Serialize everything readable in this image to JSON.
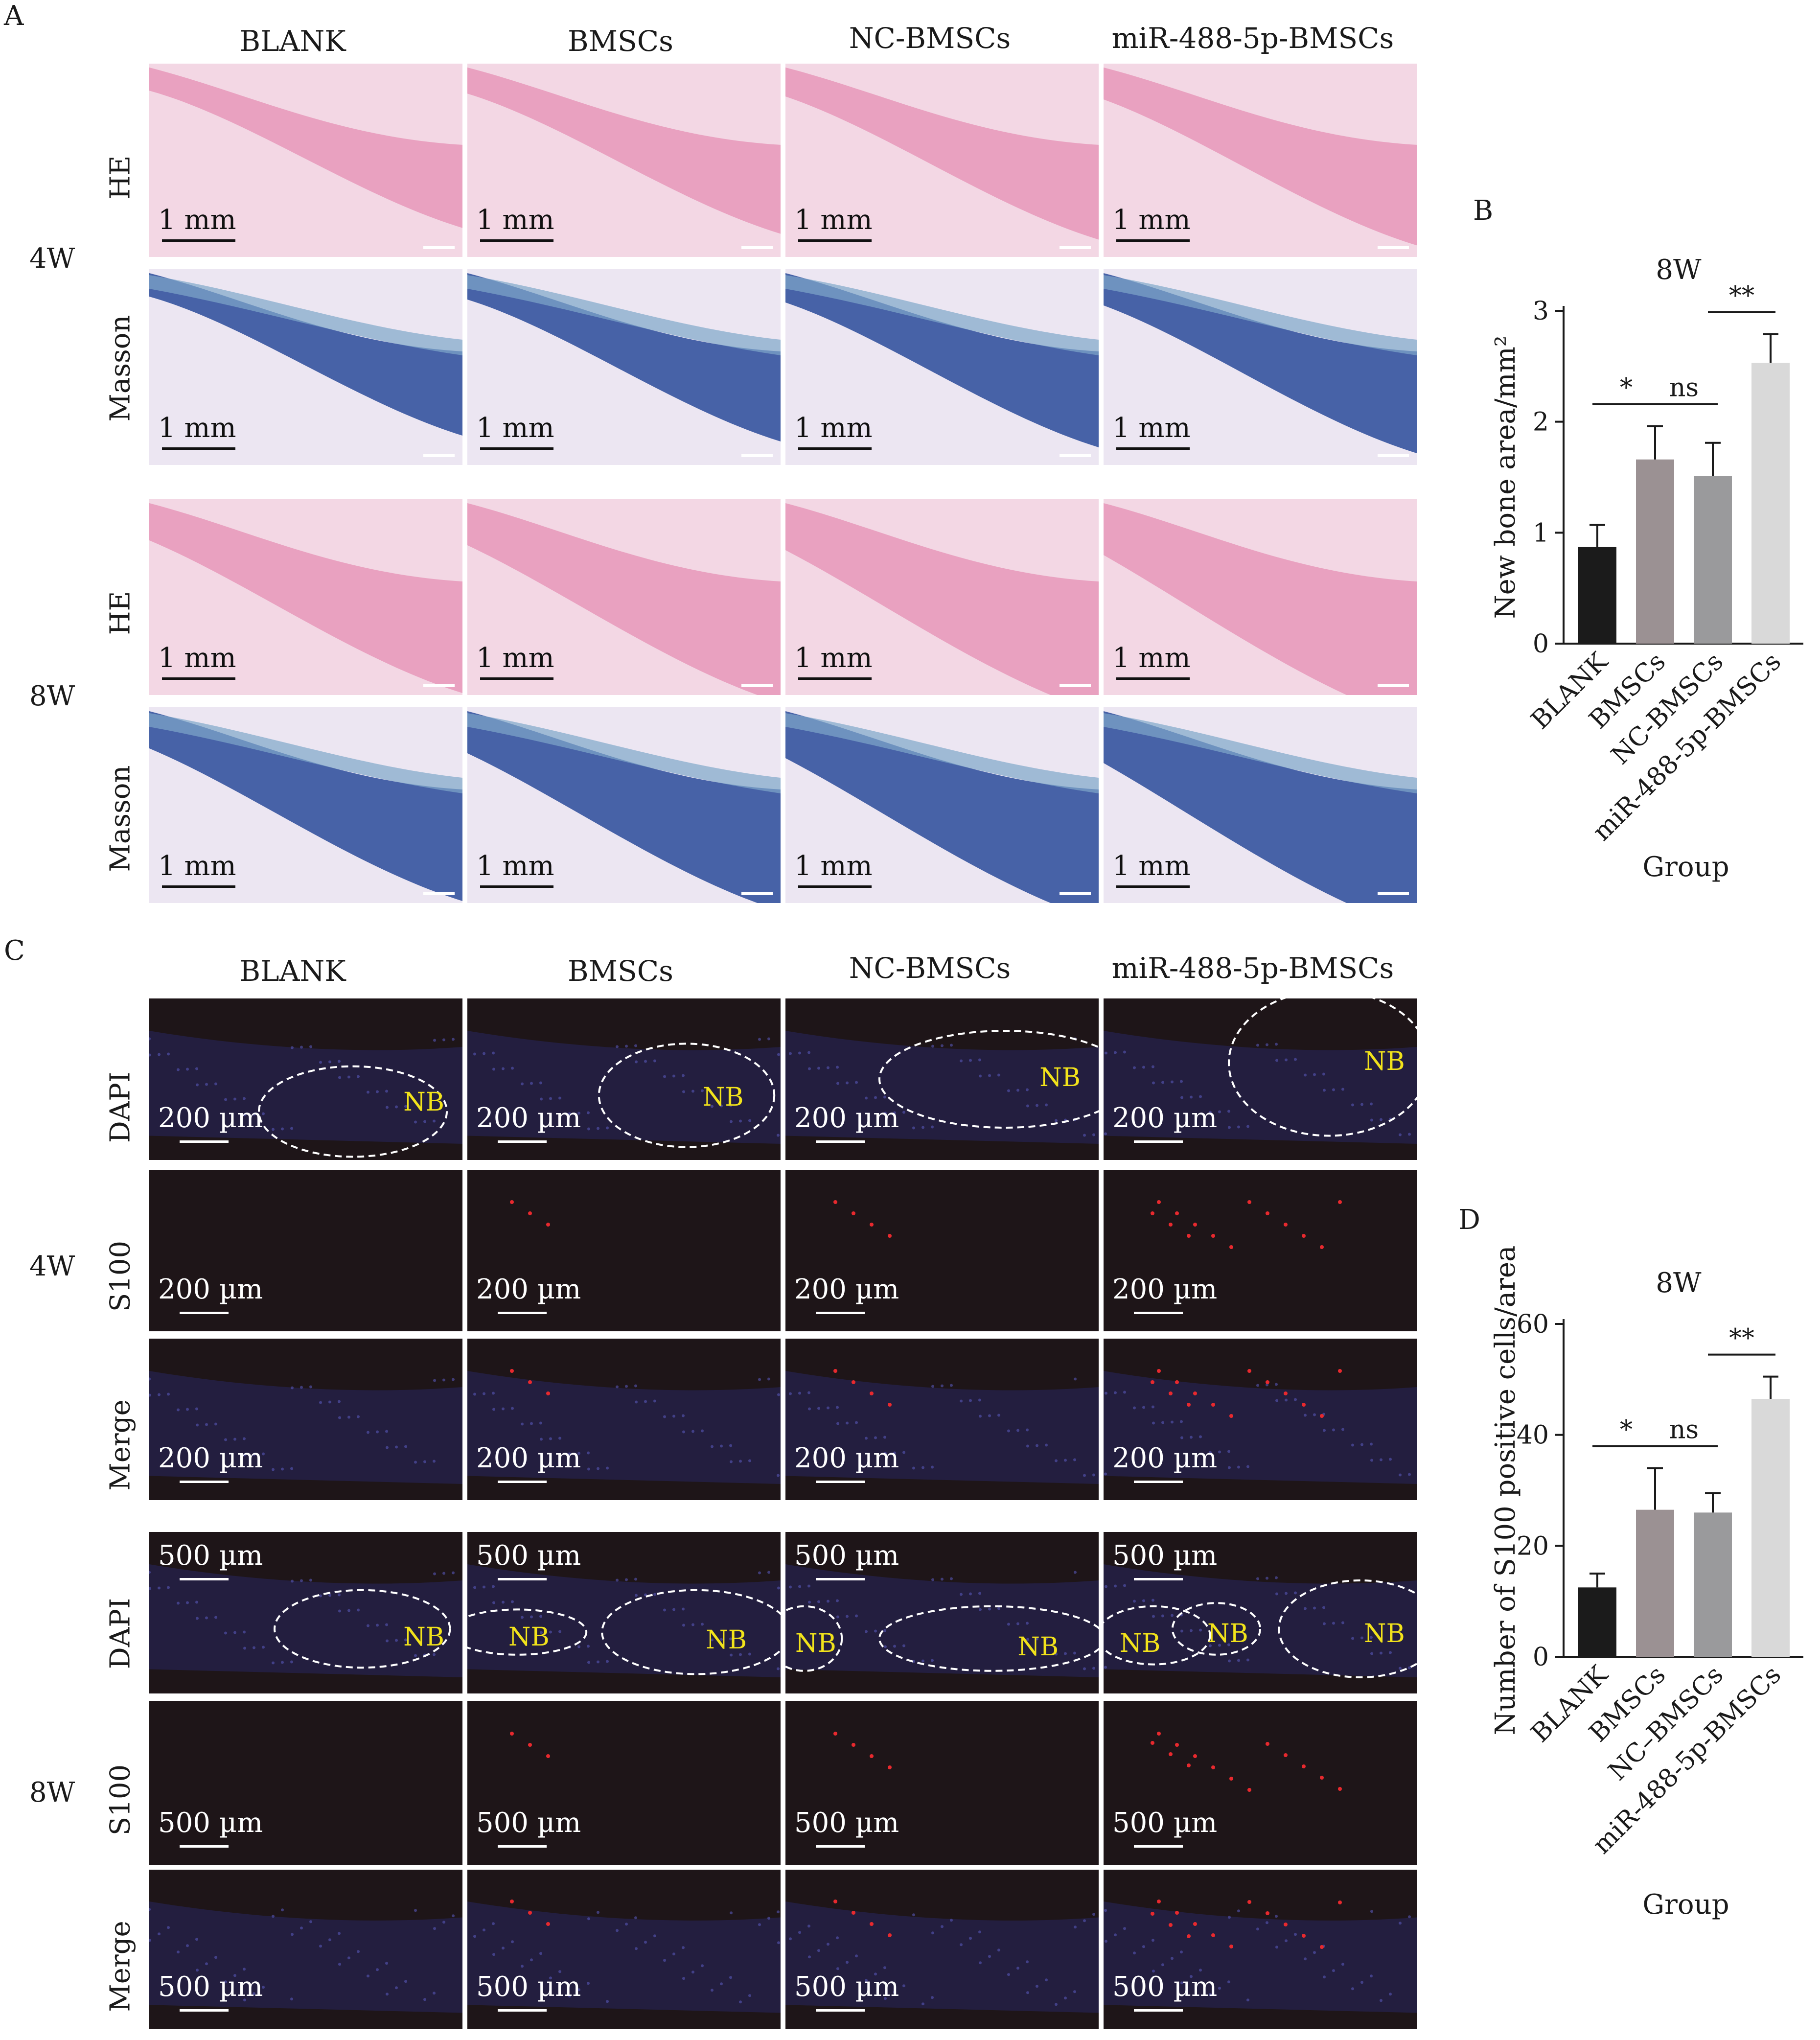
{
  "panels": {
    "a": "A",
    "b": "B",
    "c": "C",
    "d": "D"
  },
  "groups": [
    "BLANK",
    "BMSCs",
    "NC-BMSCs",
    "miR-488-5p-BMSCs"
  ],
  "weeks": {
    "w4": "4W",
    "w8": "8W"
  },
  "stains_a": {
    "he": "HE",
    "masson": "Masson"
  },
  "stains_c": {
    "dapi": "DAPI",
    "s100": "S100",
    "merge": "Merge"
  },
  "scalebars": {
    "mm": "1 mm",
    "um200": "200 µm",
    "um500": "500 µm"
  },
  "nb_label": "NB",
  "colors": {
    "he_bg": "#f3d7e4",
    "he_tissue": "#e58fb4",
    "masson_bg": "#ece6f2",
    "masson_tissue": "#2a4a9a",
    "fluor_bg": "#1e1518",
    "red_dot": "#e8292e",
    "bar_colors": [
      "#1b1b1b",
      "#9b9193",
      "#9a9a9c",
      "#d9d9d9"
    ]
  },
  "chart_data": [
    {
      "type": "bar",
      "panel": "B",
      "title": "8W",
      "xlabel": "Group",
      "ylabel": "New bone area/mm²",
      "categories": [
        "BLANK",
        "BMSCs",
        "NC-BMSCs",
        "miR-488-5p-BMSCs"
      ],
      "values": [
        0.87,
        1.66,
        1.51,
        2.53
      ],
      "errors": [
        0.2,
        0.3,
        0.3,
        0.26
      ],
      "ylim": [
        0,
        3
      ],
      "yticks": [
        "0",
        "1",
        "2",
        "3"
      ],
      "significance": [
        {
          "from": 0,
          "to": 1,
          "label": "*"
        },
        {
          "from": 1,
          "to": 2,
          "label": "ns"
        },
        {
          "from": 2,
          "to": 3,
          "label": "**"
        }
      ]
    },
    {
      "type": "bar",
      "panel": "D",
      "title": "8W",
      "xlabel": "Group",
      "ylabel": "Number of S100 positive cells/area",
      "categories": [
        "BLANK",
        "BMSCs",
        "NC–BMSCs",
        "miR-488-5p-BMSCs"
      ],
      "values": [
        12.5,
        26.5,
        26,
        46.5
      ],
      "errors": [
        2.5,
        7.5,
        3.5,
        4
      ],
      "ylim": [
        0,
        60
      ],
      "yticks": [
        "0",
        "20",
        "40",
        "60"
      ],
      "significance": [
        {
          "from": 0,
          "to": 1,
          "label": "*"
        },
        {
          "from": 1,
          "to": 2,
          "label": "ns"
        },
        {
          "from": 2,
          "to": 3,
          "label": "**"
        }
      ]
    }
  ]
}
